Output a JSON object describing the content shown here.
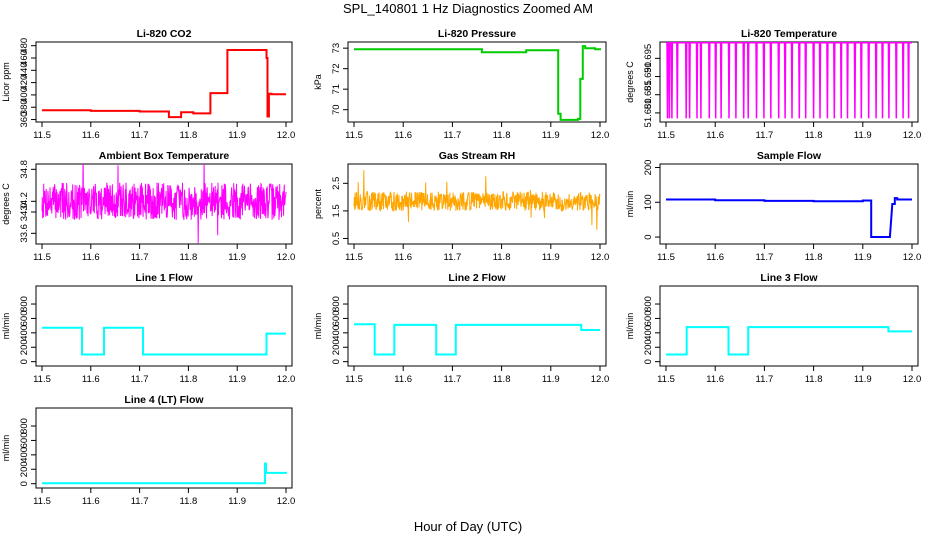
{
  "figure": {
    "title": "SPL_140801  1 Hz Diagnostics Zoomed AM",
    "xlabel": "Hour of Day (UTC)"
  },
  "chart_data": [
    {
      "type": "line",
      "title": "Li-820 CO2",
      "ylabel": "Licor ppm",
      "color": "#ff0000",
      "xlim": [
        11.5,
        12.0
      ],
      "ylim": [
        356,
        486
      ],
      "xticks": [
        "11.5",
        "11.6",
        "11.7",
        "11.8",
        "11.9",
        "12.0"
      ],
      "yticks": [
        "360",
        "380",
        "400",
        "420",
        "440",
        "460",
        "480"
      ],
      "style": "step",
      "x": [
        11.5,
        11.6,
        11.6,
        11.7,
        11.7,
        11.76,
        11.76,
        11.78,
        11.785,
        11.81,
        11.81,
        11.84,
        11.845,
        11.875,
        11.88,
        11.955,
        11.96,
        11.962,
        11.965,
        11.97,
        12.0
      ],
      "y": [
        375,
        375,
        374,
        374,
        373,
        373,
        364,
        364,
        372,
        372,
        370,
        370,
        403,
        403,
        473,
        473,
        460,
        365,
        402,
        401,
        401
      ]
    },
    {
      "type": "line",
      "title": "Li-820 Pressure",
      "ylabel": "kPa",
      "color": "#00cc00",
      "xlim": [
        11.5,
        12.0
      ],
      "ylim": [
        69.4,
        73.3
      ],
      "xticks": [
        "11.5",
        "11.6",
        "11.7",
        "11.8",
        "11.9",
        "12.0"
      ],
      "yticks": [
        "70",
        "71",
        "72",
        "73"
      ],
      "style": "step",
      "x": [
        11.5,
        11.75,
        11.76,
        11.85,
        11.91,
        11.915,
        11.92,
        11.955,
        11.96,
        11.965,
        11.97,
        11.99,
        12.0
      ],
      "y": [
        72.95,
        72.95,
        72.8,
        72.9,
        72.9,
        69.8,
        69.5,
        69.55,
        71.5,
        73.1,
        73.0,
        72.95,
        72.9
      ]
    },
    {
      "type": "line",
      "title": "Li-820 Temperature",
      "ylabel": "degrees C",
      "color": "#ff00ff",
      "xlim": [
        11.5,
        12.0
      ],
      "ylim": [
        51.6775,
        51.6995
      ],
      "xticks": [
        "11.5",
        "11.6",
        "11.7",
        "11.8",
        "11.9",
        "12.0"
      ],
      "yticks": [
        "51.680",
        "51.685",
        "51.690",
        "51.695"
      ],
      "style": "spikes",
      "baseline": 51.6993,
      "x": [
        11.503,
        11.507,
        11.512,
        11.523,
        11.541,
        11.548,
        11.563,
        11.571,
        11.588,
        11.601,
        11.612,
        11.628,
        11.642,
        11.658,
        11.667,
        11.684,
        11.699,
        11.713,
        11.729,
        11.742,
        11.756,
        11.771,
        11.784,
        11.8,
        11.813,
        11.828,
        11.842,
        11.856,
        11.869,
        11.884,
        11.897,
        11.912,
        11.927,
        11.94,
        11.953,
        11.968,
        11.982,
        11.993
      ],
      "y": [
        51.6785,
        51.6785,
        51.6785,
        51.6785,
        51.6785,
        51.6785,
        51.6785,
        51.6785,
        51.6785,
        51.6785,
        51.6785,
        51.6785,
        51.6785,
        51.6785,
        51.6785,
        51.6785,
        51.6785,
        51.6785,
        51.6785,
        51.6785,
        51.6785,
        51.6785,
        51.6785,
        51.6785,
        51.6785,
        51.6785,
        51.6785,
        51.6785,
        51.6785,
        51.6785,
        51.6785,
        51.6785,
        51.6785,
        51.6785,
        51.6785,
        51.6785,
        51.6785,
        51.6785
      ]
    },
    {
      "type": "line",
      "title": "Ambient Box Temperature",
      "ylabel": "degrees C",
      "color": "#ff00ff",
      "xlim": [
        11.5,
        12.0
      ],
      "ylim": [
        33.4,
        34.9
      ],
      "xticks": [
        "11.5",
        "11.6",
        "11.7",
        "11.8",
        "11.9",
        "12.0"
      ],
      "yticks": [
        "33.6",
        "34.0",
        "34.2",
        "34.8"
      ],
      "style": "noise",
      "center": 34.2,
      "amp": 0.35,
      "spike": 0.6,
      "seed": 7
    },
    {
      "type": "line",
      "title": "Gas Stream RH",
      "ylabel": "percent",
      "color": "#ffa500",
      "xlim": [
        11.5,
        12.0
      ],
      "ylim": [
        0.3,
        3.2
      ],
      "xticks": [
        "11.5",
        "11.6",
        "11.7",
        "11.8",
        "11.9",
        "12.0"
      ],
      "yticks": [
        "0.5",
        "1.5",
        "2.5"
      ],
      "style": "noise",
      "center": 1.85,
      "amp": 0.35,
      "spike": 1.2,
      "seed": 13
    },
    {
      "type": "line",
      "title": "Sample Flow",
      "ylabel": "ml/min",
      "color": "#0000ff",
      "xlim": [
        11.5,
        12.0
      ],
      "ylim": [
        -20,
        210
      ],
      "xticks": [
        "11.5",
        "11.6",
        "11.7",
        "11.8",
        "11.9",
        "12.0"
      ],
      "yticks": [
        "0",
        "100",
        "200"
      ],
      "style": "step",
      "x": [
        11.5,
        11.6,
        11.7,
        11.8,
        11.9,
        11.912,
        11.917,
        11.955,
        11.96,
        11.965,
        11.97,
        12.0
      ],
      "y": [
        108,
        106,
        104,
        103,
        105,
        105,
        0,
        0,
        95,
        112,
        108,
        108
      ]
    },
    {
      "type": "line",
      "title": "Line 1 Flow",
      "ylabel": "ml/min",
      "color": "#00ffff",
      "xlim": [
        11.5,
        12.0
      ],
      "ylim": [
        -60,
        1050
      ],
      "xticks": [
        "11.5",
        "11.6",
        "11.7",
        "11.8",
        "11.9",
        "12.0"
      ],
      "yticks": [
        "0",
        "200",
        "400",
        "600",
        "800"
      ],
      "style": "step",
      "x": [
        11.5,
        11.58,
        11.582,
        11.625,
        11.627,
        11.705,
        11.707,
        11.955,
        11.96,
        12.0
      ],
      "y": [
        470,
        470,
        100,
        100,
        470,
        470,
        100,
        100,
        390,
        390
      ]
    },
    {
      "type": "line",
      "title": "Line 2 Flow",
      "ylabel": "ml/min",
      "color": "#00ffff",
      "xlim": [
        11.5,
        12.0
      ],
      "ylim": [
        -60,
        1050
      ],
      "xticks": [
        "11.5",
        "11.6",
        "11.7",
        "11.8",
        "11.9",
        "12.0"
      ],
      "yticks": [
        "0",
        "200",
        "400",
        "600",
        "800"
      ],
      "style": "step",
      "x": [
        11.5,
        11.54,
        11.542,
        11.58,
        11.582,
        11.665,
        11.667,
        11.705,
        11.707,
        11.96,
        11.962,
        12.0
      ],
      "y": [
        520,
        520,
        100,
        100,
        510,
        510,
        100,
        100,
        510,
        510,
        440,
        440
      ]
    },
    {
      "type": "line",
      "title": "Line 3 Flow",
      "ylabel": "ml/min",
      "color": "#00ffff",
      "xlim": [
        11.5,
        12.0
      ],
      "ylim": [
        -60,
        1050
      ],
      "xticks": [
        "11.5",
        "11.6",
        "11.7",
        "11.8",
        "11.9",
        "12.0"
      ],
      "yticks": [
        "0",
        "200",
        "400",
        "600",
        "800"
      ],
      "style": "step",
      "x": [
        11.5,
        11.54,
        11.542,
        11.625,
        11.627,
        11.665,
        11.667,
        11.95,
        11.952,
        12.0
      ],
      "y": [
        100,
        100,
        480,
        480,
        100,
        100,
        480,
        480,
        420,
        420
      ]
    },
    {
      "type": "line",
      "title": "Line 4 (LT) Flow",
      "ylabel": "ml/min",
      "color": "#00ffff",
      "xlim": [
        11.5,
        12.0
      ],
      "ylim": [
        -60,
        1050
      ],
      "xticks": [
        "11.5",
        "11.6",
        "11.7",
        "11.8",
        "11.9",
        "12.0"
      ],
      "yticks": [
        "0",
        "200",
        "400",
        "600",
        "800"
      ],
      "style": "step",
      "x": [
        11.5,
        11.955,
        11.957,
        11.959,
        11.962,
        12.0
      ],
      "y": [
        5,
        5,
        280,
        150,
        150,
        140
      ]
    }
  ]
}
